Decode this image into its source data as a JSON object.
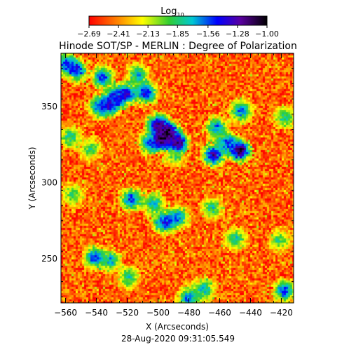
{
  "chart_data": {
    "type": "heatmap",
    "title": "Hinode SOT/SP - MERLIN : Degree of Polarization",
    "subtitle": "28-Aug-2020 09:31:05.549",
    "xlabel": "X (Arcseconds)",
    "ylabel": "Y (Arcseconds)",
    "xlim": [
      -563,
      -412
    ],
    "ylim": [
      221,
      385
    ],
    "x_ticks": [
      -560,
      -540,
      -520,
      -500,
      -480,
      -460,
      -440,
      -420
    ],
    "y_ticks": [
      250,
      300,
      350
    ],
    "x_tick_labels": [
      "−560",
      "−540",
      "−520",
      "−500",
      "−480",
      "−460",
      "−440",
      "−420"
    ],
    "y_tick_labels": [
      "250",
      "300",
      "350"
    ],
    "colorbar": {
      "label_base": "Log",
      "label_sub": "10",
      "range": [
        -2.69,
        -1.0
      ],
      "ticks": [
        -2.69,
        -2.41,
        -2.13,
        -1.85,
        -1.56,
        -1.28,
        -1.0
      ],
      "tick_labels": [
        "−2.69",
        "−2.41",
        "−2.13",
        "−1.85",
        "−1.56",
        "−1.28",
        "−1.00"
      ],
      "colormap": "rainbow (red to purple/black)"
    },
    "background_level": -2.5,
    "patches": [
      {
        "x": -560,
        "y": 378,
        "value": -1.5
      },
      {
        "x": -553,
        "y": 374,
        "value": -1.4
      },
      {
        "x": -536,
        "y": 369,
        "value": -1.5
      },
      {
        "x": -513,
        "y": 371,
        "value": -1.7
      },
      {
        "x": -521,
        "y": 358,
        "value": -1.3
      },
      {
        "x": -508,
        "y": 359,
        "value": -1.4
      },
      {
        "x": -528,
        "y": 356,
        "value": -1.5
      },
      {
        "x": -538,
        "y": 350,
        "value": -1.5
      },
      {
        "x": -531,
        "y": 351,
        "value": -1.4
      },
      {
        "x": -500,
        "y": 338,
        "value": -1.2
      },
      {
        "x": -493,
        "y": 333,
        "value": -1.1
      },
      {
        "x": -498,
        "y": 328,
        "value": -1.1
      },
      {
        "x": -487,
        "y": 326,
        "value": -1.2
      },
      {
        "x": -505,
        "y": 326,
        "value": -1.5
      },
      {
        "x": -447,
        "y": 321,
        "value": -1.1
      },
      {
        "x": -455,
        "y": 326,
        "value": -1.5
      },
      {
        "x": -464,
        "y": 318,
        "value": -1.3
      },
      {
        "x": -462,
        "y": 336,
        "value": -1.6
      },
      {
        "x": -446,
        "y": 347,
        "value": -1.6
      },
      {
        "x": -557,
        "y": 330,
        "value": -1.8
      },
      {
        "x": -544,
        "y": 322,
        "value": -1.9
      },
      {
        "x": -517,
        "y": 289,
        "value": -1.5
      },
      {
        "x": -503,
        "y": 286,
        "value": -1.7
      },
      {
        "x": -487,
        "y": 277,
        "value": -1.6
      },
      {
        "x": -496,
        "y": 274,
        "value": -1.4
      },
      {
        "x": -541,
        "y": 251,
        "value": -1.5
      },
      {
        "x": -531,
        "y": 249,
        "value": -1.7
      },
      {
        "x": -519,
        "y": 238,
        "value": -1.8
      },
      {
        "x": -480,
        "y": 224,
        "value": -1.6
      },
      {
        "x": -470,
        "y": 230,
        "value": -1.7
      },
      {
        "x": -418,
        "y": 229,
        "value": -1.5
      },
      {
        "x": -450,
        "y": 263,
        "value": -1.8
      },
      {
        "x": -418,
        "y": 343,
        "value": -1.8
      },
      {
        "x": -421,
        "y": 262,
        "value": -1.9
      },
      {
        "x": -555,
        "y": 292,
        "value": -1.9
      },
      {
        "x": -465,
        "y": 283,
        "value": -1.8
      },
      {
        "x": -489,
        "y": 318,
        "value": -1.9
      }
    ]
  }
}
